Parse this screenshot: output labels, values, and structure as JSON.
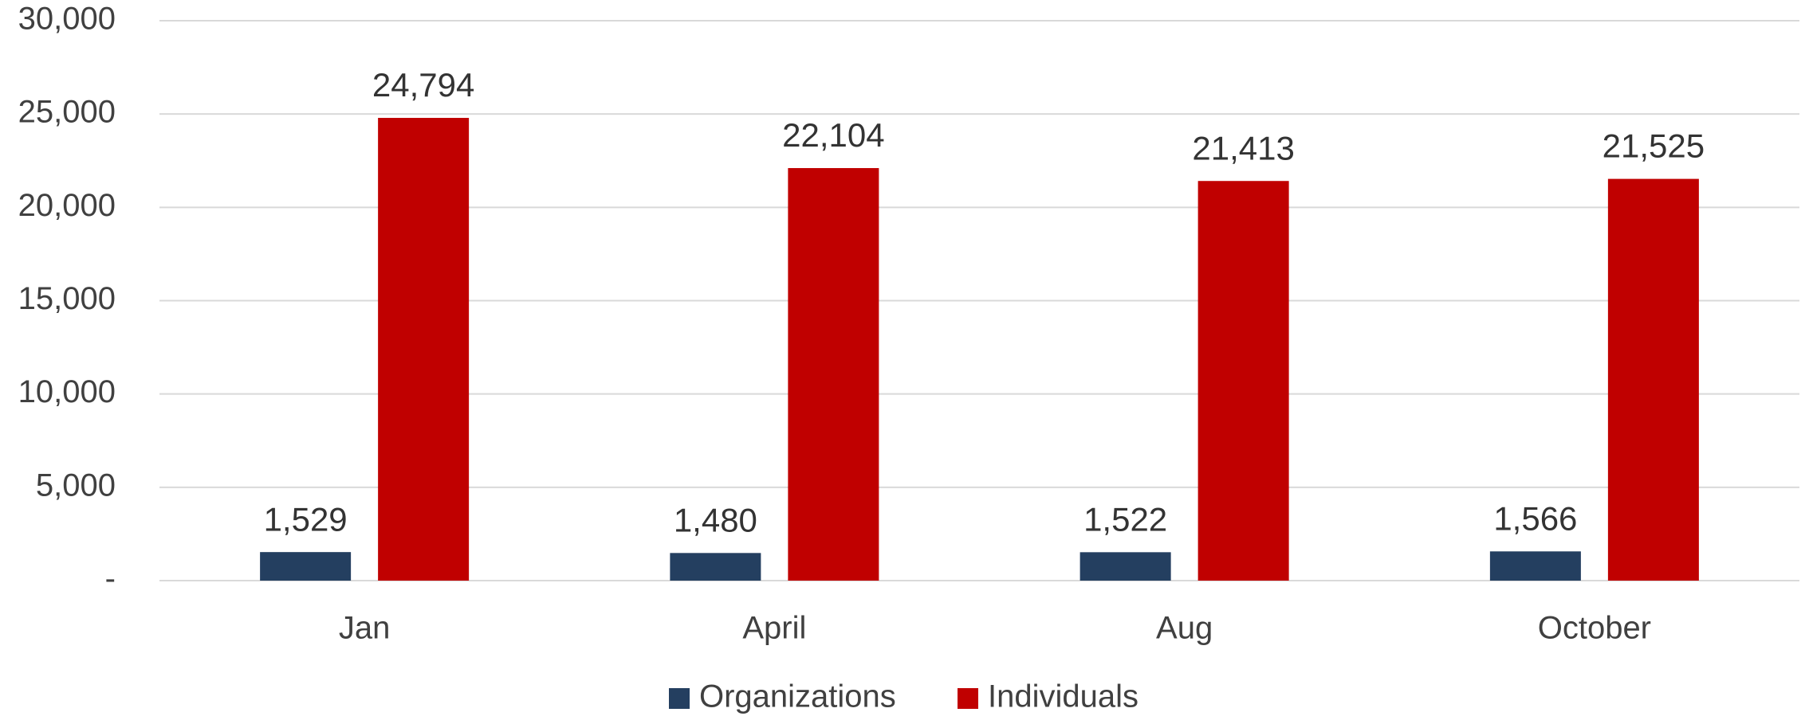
{
  "chart_data": {
    "type": "bar",
    "categories": [
      "Jan",
      "April",
      "Aug",
      "October"
    ],
    "series": [
      {
        "name": "Organizations",
        "color": "#243F60",
        "values": [
          1529,
          1480,
          1522,
          1566
        ],
        "value_labels": [
          "1,529",
          "1,480",
          "1,522",
          "1,566"
        ]
      },
      {
        "name": "Individuals",
        "color": "#C00000",
        "values": [
          24794,
          22104,
          21413,
          21525
        ],
        "value_labels": [
          "24,794",
          "22,104",
          "21,413",
          "21,525"
        ]
      }
    ],
    "ylim": [
      0,
      30000
    ],
    "yticks": [
      {
        "value": 0,
        "label": "-"
      },
      {
        "value": 5000,
        "label": "5,000"
      },
      {
        "value": 10000,
        "label": "10,000"
      },
      {
        "value": 15000,
        "label": "15,000"
      },
      {
        "value": 20000,
        "label": "20,000"
      },
      {
        "value": 25000,
        "label": "25,000"
      },
      {
        "value": 30000,
        "label": "30,000"
      }
    ],
    "grid": true,
    "legend": "bottom"
  }
}
